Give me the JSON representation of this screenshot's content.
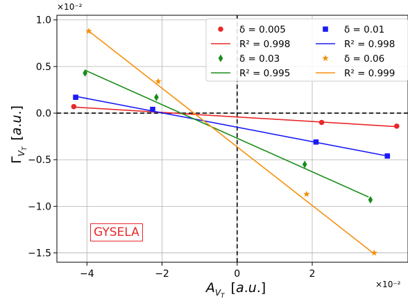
{
  "chart_data": {
    "type": "scatter",
    "xlabel": "A_{V_T} [a.u.]",
    "ylabel": "Γ_{V_T} [a.u.]",
    "x_exponent": "×10⁻²",
    "y_exponent": "×10⁻²",
    "xlim": [
      -4.8,
      4.55
    ],
    "ylim": [
      -1.6,
      1.05
    ],
    "x_ticks": [
      -4,
      -2,
      0,
      2
    ],
    "x_tick_labels": [
      "−4",
      "−2",
      "0",
      "2"
    ],
    "y_ticks": [
      1.0,
      0.5,
      0.0,
      -0.5,
      -1.0,
      -1.5
    ],
    "y_tick_labels": [
      "1.0",
      "0.5",
      "0.0",
      "−0.5",
      "−1.0",
      "−1.5"
    ],
    "grid": true,
    "legend_position": "top-right",
    "annotation": "GYSELA",
    "series": [
      {
        "name": "δ = 0.005",
        "fit_label": "R² = 0.998",
        "color": "#e8282a",
        "marker": "circle",
        "x": [
          -4.35,
          2.25,
          4.25
        ],
        "y": [
          0.07,
          -0.1,
          -0.14
        ],
        "fit": {
          "x": [
            -4.35,
            4.25
          ],
          "y": [
            0.065,
            -0.145
          ]
        }
      },
      {
        "name": "δ = 0.01",
        "fit_label": "R² = 0.998",
        "color": "#1b1bf5",
        "marker": "square",
        "x": [
          -4.3,
          -2.25,
          2.1,
          4.0
        ],
        "y": [
          0.17,
          0.04,
          -0.31,
          -0.46
        ],
        "fit": {
          "x": [
            -4.3,
            4.0
          ],
          "y": [
            0.18,
            -0.46
          ]
        }
      },
      {
        "name": "δ = 0.03",
        "fit_label": "R² = 0.995",
        "color": "#1a8c1a",
        "marker": "diamond",
        "x": [
          -4.05,
          -2.15,
          1.8,
          3.55
        ],
        "y": [
          0.43,
          0.17,
          -0.55,
          -0.93
        ],
        "fit": {
          "x": [
            -4.05,
            3.5
          ],
          "y": [
            0.46,
            -0.9
          ]
        }
      },
      {
        "name": "δ = 0.06",
        "fit_label": "R² = 0.999",
        "color": "#f5900c",
        "marker": "star",
        "x": [
          -3.95,
          -2.1,
          1.85,
          3.65
        ],
        "y": [
          0.88,
          0.34,
          -0.87,
          -1.5
        ],
        "fit": {
          "x": [
            -3.95,
            3.65
          ],
          "y": [
            0.88,
            -1.51
          ]
        }
      }
    ]
  }
}
